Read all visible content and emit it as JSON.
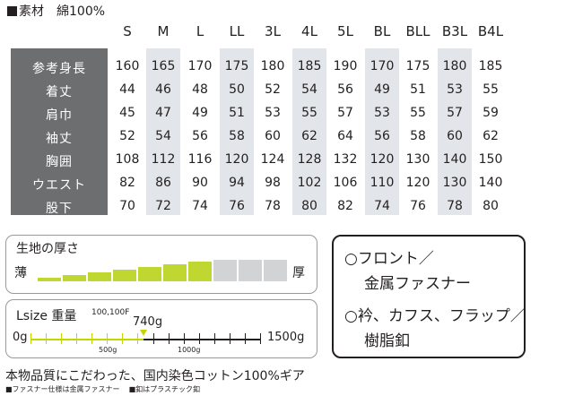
{
  "material": {
    "label": "素材",
    "value": "綿100%"
  },
  "size_table": {
    "sizes": [
      "S",
      "M",
      "L",
      "LL",
      "3L",
      "4L",
      "5L",
      "BL",
      "BLL",
      "B3L",
      "B4L"
    ],
    "rows": [
      {
        "label": "参考身長",
        "values": [
          "160",
          "165",
          "170",
          "175",
          "180",
          "185",
          "190",
          "170",
          "175",
          "180",
          "185"
        ]
      },
      {
        "label": "着丈",
        "values": [
          "44",
          "46",
          "48",
          "50",
          "52",
          "54",
          "56",
          "49",
          "51",
          "53",
          "55"
        ]
      },
      {
        "label": "肩巾",
        "values": [
          "45",
          "47",
          "49",
          "51",
          "53",
          "55",
          "57",
          "53",
          "55",
          "57",
          "59"
        ]
      },
      {
        "label": "袖丈",
        "values": [
          "52",
          "54",
          "56",
          "58",
          "60",
          "62",
          "64",
          "56",
          "58",
          "60",
          "62"
        ]
      },
      {
        "label": "胸囲",
        "values": [
          "108",
          "112",
          "116",
          "120",
          "124",
          "128",
          "132",
          "120",
          "130",
          "140",
          "150"
        ]
      },
      {
        "label": "ウエスト",
        "values": [
          "82",
          "86",
          "90",
          "94",
          "98",
          "102",
          "106",
          "110",
          "120",
          "130",
          "140"
        ]
      },
      {
        "label": "股下",
        "values": [
          "70",
          "72",
          "74",
          "76",
          "78",
          "80",
          "82",
          "74",
          "76",
          "78",
          "80"
        ]
      }
    ]
  },
  "thickness": {
    "title": "生地の厚さ",
    "min_label": "薄",
    "max_label": "厚",
    "level": 7,
    "total_levels": 10,
    "active_color": "#bfd730",
    "inactive_color": "#d1d3d4"
  },
  "weight": {
    "title": "Lsize 重量",
    "models": "100,100F",
    "value_label": "740g",
    "value": 740,
    "min_label": "0g",
    "max_label": "1500g",
    "max": 1500,
    "tick_500": "500g",
    "tick_1000": "1000g",
    "accent_color": "#c4d600"
  },
  "features": {
    "line1": "○フロント／",
    "line2": "金属ファスナー",
    "line3": "○衿、カフス、フラップ／",
    "line4": "樹脂釦"
  },
  "footer": {
    "tagline": "本物品質にこだわった、国内染色コットン100%ギア",
    "note1": "■ファスナー仕様は金属ファスナー",
    "note2": "■釦はプラスチック釦"
  }
}
